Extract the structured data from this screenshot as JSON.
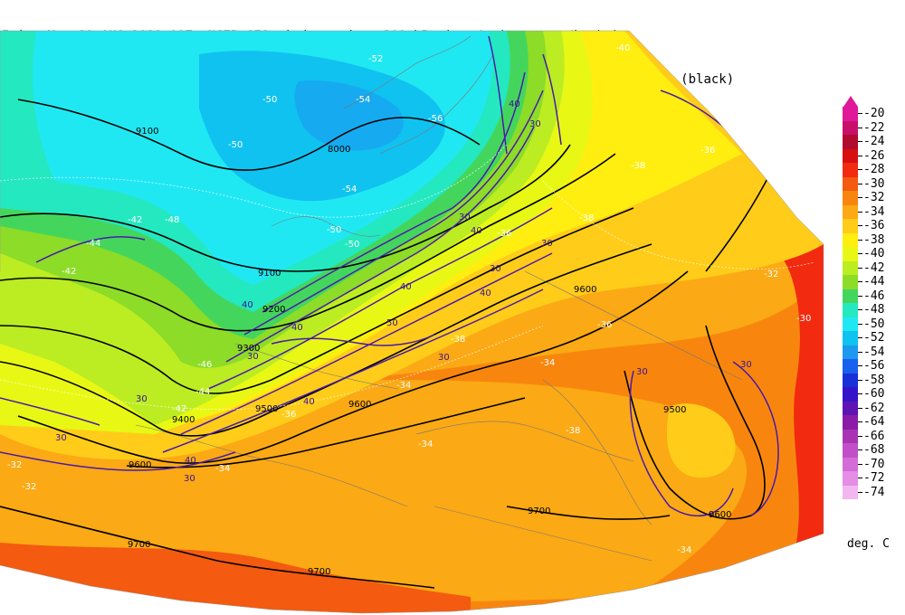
{
  "header": {
    "line1": "Init  Mon 19 AUG 2019 00Z  NCEP GFS wind speed at 300 hPa in m/s (contours/barbs)",
    "line2": "Fcst Tue 20 AUG 2019 03Z  temperature (shaded/dotted) and geopotential height at 300 hPa (black)"
  },
  "legend": {
    "units": "deg. C",
    "entries": [
      {
        "label": "-20",
        "color": "#e0189a"
      },
      {
        "label": "-22",
        "color": "#c8106a"
      },
      {
        "label": "-24",
        "color": "#b00c30"
      },
      {
        "label": "-26",
        "color": "#d61010"
      },
      {
        "label": "-28",
        "color": "#f22a10"
      },
      {
        "label": "-30",
        "color": "#f45a10"
      },
      {
        "label": "-32",
        "color": "#f8860e"
      },
      {
        "label": "-34",
        "color": "#fba914"
      },
      {
        "label": "-36",
        "color": "#ffcc1a"
      },
      {
        "label": "-38",
        "color": "#ffee10"
      },
      {
        "label": "-40",
        "color": "#e8f814"
      },
      {
        "label": "-42",
        "color": "#bcec22"
      },
      {
        "label": "-44",
        "color": "#8cdc28"
      },
      {
        "label": "-46",
        "color": "#44d65c"
      },
      {
        "label": "-48",
        "color": "#24e8c0"
      },
      {
        "label": "-50",
        "color": "#20e8f2"
      },
      {
        "label": "-52",
        "color": "#10c2f0"
      },
      {
        "label": "-54",
        "color": "#1c98f0"
      },
      {
        "label": "-56",
        "color": "#1860ee"
      },
      {
        "label": "-58",
        "color": "#1830d8"
      },
      {
        "label": "-60",
        "color": "#3414c8"
      },
      {
        "label": "-62",
        "color": "#5e14b4"
      },
      {
        "label": "-64",
        "color": "#8a1ca8"
      },
      {
        "label": "-66",
        "color": "#a834b4"
      },
      {
        "label": "-68",
        "color": "#c050c8"
      },
      {
        "label": "-70",
        "color": "#d46cd8"
      },
      {
        "label": "-72",
        "color": "#e48ee6"
      },
      {
        "label": "-74",
        "color": "#f2b6f0"
      }
    ]
  },
  "map": {
    "height_labels": [
      "9100",
      "8000",
      "9100",
      "9200",
      "9300",
      "9400",
      "9500",
      "9600",
      "9600",
      "9500",
      "9600",
      "9600",
      "9700",
      "9700",
      "9700"
    ],
    "wind_labels": [
      "40",
      "30",
      "30",
      "40",
      "40",
      "40",
      "50",
      "40",
      "30",
      "40",
      "30",
      "30",
      "30",
      "30",
      "30",
      "40",
      "30",
      "40",
      "30",
      "30"
    ],
    "temp_labels": [
      "-52",
      "-50",
      "-54",
      "-50",
      "-56",
      "-54",
      "-50",
      "-50",
      "-48",
      "-42",
      "-44",
      "-46",
      "-42",
      "-44",
      "-38",
      "-36",
      "-38",
      "-36",
      "-32",
      "-36",
      "-38",
      "-34",
      "-36",
      "-34",
      "-34",
      "-38",
      "-30",
      "-34",
      "-34",
      "-32",
      "-32",
      "-40",
      "-42"
    ]
  }
}
